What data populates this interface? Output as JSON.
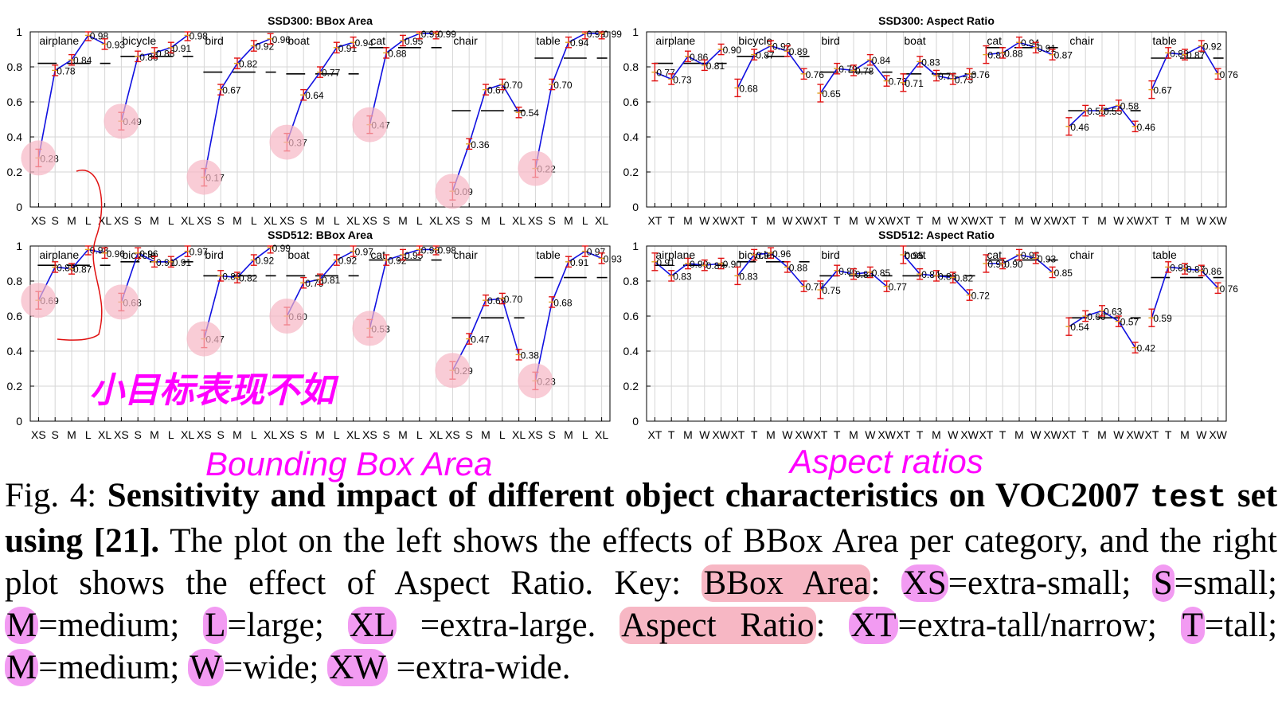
{
  "chart_data": [
    {
      "type": "line",
      "title": "SSD300: BBox Area",
      "x_ticks": [
        "XS",
        "S",
        "M",
        "L",
        "XL"
      ],
      "ylim": [
        0,
        1
      ],
      "y_ticks": [
        "0",
        "0.2",
        "0.4",
        "0.6",
        "0.8",
        "1"
      ],
      "grid": true,
      "groups": [
        {
          "category": "airplane",
          "values": [
            0.28,
            0.78,
            0.84,
            0.98,
            0.93
          ],
          "mean": 0.82
        },
        {
          "category": "bicycle",
          "values": [
            0.49,
            0.86,
            0.88,
            0.91,
            0.98
          ],
          "mean": 0.86
        },
        {
          "category": "bird",
          "values": [
            0.17,
            0.67,
            0.82,
            0.92,
            0.96
          ],
          "mean": 0.77
        },
        {
          "category": "boat",
          "values": [
            0.37,
            0.64,
            0.77,
            0.91,
            0.94
          ],
          "mean": 0.76
        },
        {
          "category": "cat",
          "values": [
            0.47,
            0.88,
            0.95,
            0.99,
            0.99
          ],
          "mean": 0.91
        },
        {
          "category": "chair",
          "values": [
            0.09,
            0.36,
            0.67,
            0.7,
            0.54
          ],
          "mean": 0.55
        },
        {
          "category": "table",
          "values": [
            0.22,
            0.7,
            0.94,
            0.99,
            0.99
          ],
          "mean": 0.85
        }
      ]
    },
    {
      "type": "line",
      "title": "SSD300: Aspect Ratio",
      "x_ticks": [
        "XT",
        "T",
        "M",
        "W",
        "XW"
      ],
      "ylim": [
        0,
        1
      ],
      "y_ticks": [
        "0",
        "0.2",
        "0.4",
        "0.6",
        "0.8",
        "1"
      ],
      "grid": true,
      "groups": [
        {
          "category": "airplane",
          "values": [
            0.77,
            0.73,
            0.86,
            0.81,
            0.9
          ],
          "mean": 0.82
        },
        {
          "category": "bicycle",
          "values": [
            0.68,
            0.87,
            0.92,
            0.89,
            0.76
          ],
          "mean": 0.86
        },
        {
          "category": "bird",
          "values": [
            0.65,
            0.79,
            0.78,
            0.84,
            0.72
          ],
          "mean": 0.77
        },
        {
          "category": "boat",
          "values": [
            0.71,
            0.83,
            0.75,
            0.73,
            0.76
          ],
          "mean": 0.76
        },
        {
          "category": "cat",
          "values": [
            0.87,
            0.88,
            0.94,
            0.91,
            0.87
          ],
          "mean": 0.91
        },
        {
          "category": "chair",
          "values": [
            0.46,
            0.55,
            0.55,
            0.58,
            0.46
          ],
          "mean": 0.55
        },
        {
          "category": "table",
          "values": [
            0.67,
            0.88,
            0.87,
            0.92,
            0.76
          ],
          "mean": 0.85
        }
      ]
    },
    {
      "type": "line",
      "title": "SSD512: BBox Area",
      "x_ticks": [
        "XS",
        "S",
        "M",
        "L",
        "XL"
      ],
      "ylim": [
        0,
        1
      ],
      "y_ticks": [
        "0",
        "0.2",
        "0.4",
        "0.6",
        "0.8",
        "1"
      ],
      "grid": true,
      "groups": [
        {
          "category": "airplane",
          "values": [
            0.69,
            0.88,
            0.87,
            0.98,
            0.96
          ],
          "mean": 0.89
        },
        {
          "category": "bicycle",
          "values": [
            0.68,
            0.96,
            0.91,
            0.91,
            0.97
          ],
          "mean": 0.91
        },
        {
          "category": "bird",
          "values": [
            0.47,
            0.83,
            0.82,
            0.92,
            0.99
          ],
          "mean": 0.83
        },
        {
          "category": "boat",
          "values": [
            0.6,
            0.79,
            0.81,
            0.92,
            0.97
          ],
          "mean": 0.83
        },
        {
          "category": "cat",
          "values": [
            0.53,
            0.92,
            0.95,
            0.98,
            0.98
          ],
          "mean": 0.92
        },
        {
          "category": "chair",
          "values": [
            0.29,
            0.47,
            0.69,
            0.7,
            0.38
          ],
          "mean": 0.59
        },
        {
          "category": "table",
          "values": [
            0.23,
            0.68,
            0.91,
            0.97,
            0.93
          ],
          "mean": 0.82
        }
      ]
    },
    {
      "type": "line",
      "title": "SSD512: Aspect Ratio",
      "x_ticks": [
        "XT",
        "T",
        "M",
        "W",
        "XW"
      ],
      "ylim": [
        0,
        1
      ],
      "y_ticks": [
        "0",
        "0.2",
        "0.4",
        "0.6",
        "0.8",
        "1"
      ],
      "grid": true,
      "groups": [
        {
          "category": "airplane",
          "values": [
            0.91,
            0.83,
            0.9,
            0.89,
            0.9
          ],
          "mean": 0.89
        },
        {
          "category": "bicycle",
          "values": [
            0.83,
            0.95,
            0.96,
            0.88,
            0.77
          ],
          "mean": 0.91
        },
        {
          "category": "bird",
          "values": [
            0.75,
            0.86,
            0.84,
            0.85,
            0.77
          ],
          "mean": 0.83
        },
        {
          "category": "boat",
          "values": [
            0.95,
            0.84,
            0.83,
            0.82,
            0.72
          ],
          "mean": 0.83
        },
        {
          "category": "cat",
          "values": [
            0.9,
            0.9,
            0.95,
            0.93,
            0.85
          ],
          "mean": 0.92
        },
        {
          "category": "chair",
          "values": [
            0.54,
            0.6,
            0.63,
            0.57,
            0.42
          ],
          "mean": 0.59
        },
        {
          "category": "table",
          "values": [
            0.59,
            0.88,
            0.87,
            0.86,
            0.76
          ],
          "mean": 0.82
        }
      ]
    }
  ],
  "handwriting": {
    "bbox_area": "Bounding Box Area",
    "aspect_ratios": "Aspect ratios",
    "chinese_note": "小目标表现不如"
  },
  "caption": {
    "prefix": "Fig. 4:",
    "bold_1": "Sensitivity and impact of different object characteristics on VOC2007",
    "bold_code": "test",
    "bold_2": "set using [21].",
    "text_1": "The plot on the left shows the effects of BBox Area per category, and the right plot shows the effect of Aspect Ratio. Key:",
    "key_bbox": "BBox Area",
    "key_xs": "XS",
    "def_xs": "=extra-small;",
    "key_s": "S",
    "def_s": "=small;",
    "key_m": "M",
    "def_m": "=medium;",
    "key_l": "L",
    "def_l": "=large;",
    "key_xl": "XL",
    "def_xl": "=extra-large.",
    "key_ar": "Aspect Ratio",
    "key_xt": "XT",
    "def_xt": "=extra-tall/narrow;",
    "key_t": "T",
    "def_t": "=tall;",
    "key_m2": "M",
    "def_m2": "=medium;",
    "key_w": "W",
    "def_w": "=wide;",
    "key_xw": "XW",
    "def_xw": "=extra-wide."
  },
  "colors": {
    "line": "#1010e0",
    "errorbar": "#e01010",
    "highlight_pink": "#f7b7c4",
    "highlight_magenta": "#f29bf2",
    "ink_magenta": "#ff00ff",
    "ink_red": "#e01010"
  }
}
